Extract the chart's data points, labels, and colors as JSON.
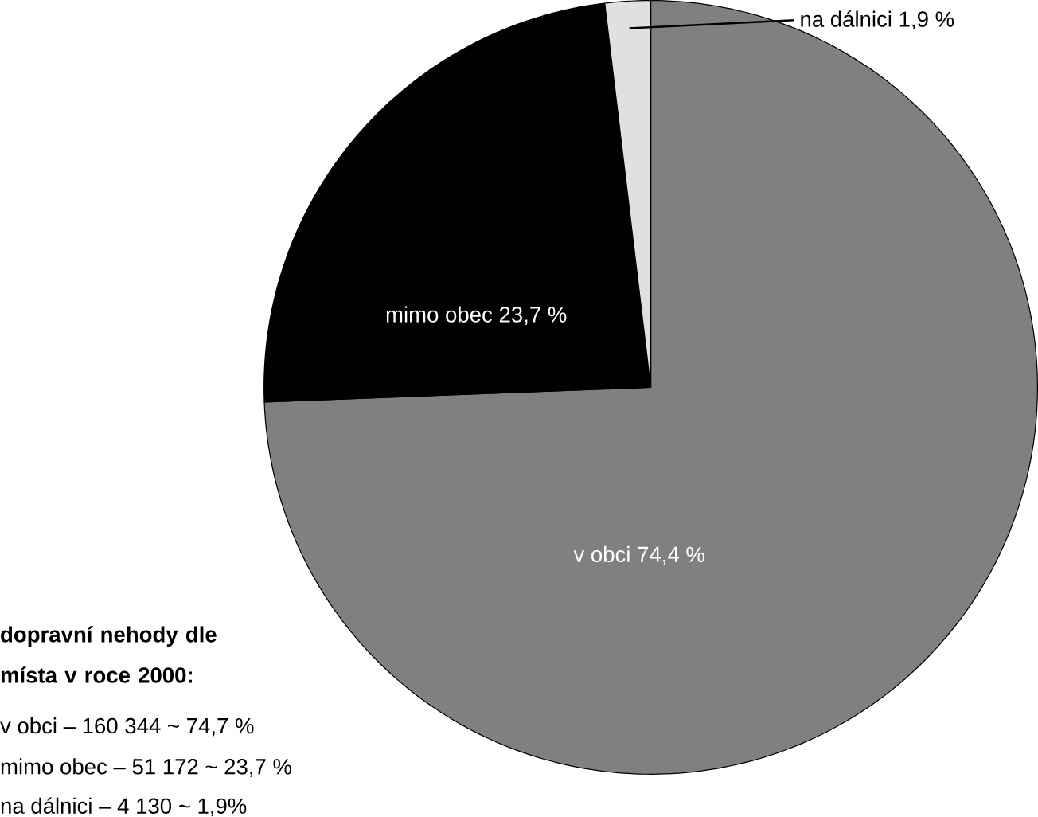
{
  "chart_data": {
    "type": "pie",
    "title": "dopravní nehody dle místa v roce 2000:",
    "categories": [
      "v obci",
      "mimo obec",
      "na dálnici"
    ],
    "values": [
      74.4,
      23.7,
      1.9
    ],
    "value_labels": [
      "74,4 %",
      "23,7 %",
      "1,9 %"
    ],
    "colors": [
      "#808080",
      "#000000",
      "#e0e0e0"
    ],
    "annotations": [
      "v obci – 160 344 ~ 74,7 %",
      "mimo obec – 51 172 ~ 23,7 %",
      "na dálnici – 4 130 ~ 1,9%"
    ]
  }
}
